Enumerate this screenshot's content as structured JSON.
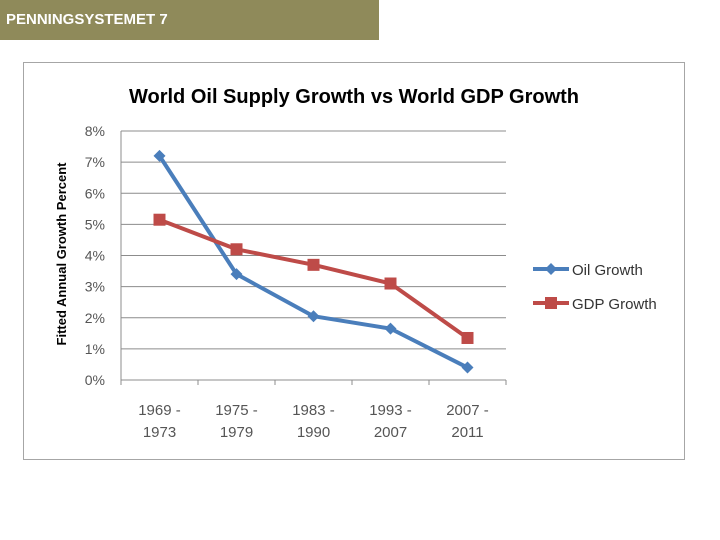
{
  "banner": {
    "title": "PENNINGSYSTEMET 7"
  },
  "chart_data": {
    "type": "line",
    "title": "World Oil Supply Growth vs World GDP Growth",
    "xlabel": "",
    "ylabel": "Fitted Annual Growth Percent",
    "categories": [
      [
        "1969 -",
        "1973"
      ],
      [
        "1975 -",
        "1979"
      ],
      [
        "1983 -",
        "1990"
      ],
      [
        "1993 -",
        "2007"
      ],
      [
        "2007 -",
        "2011"
      ]
    ],
    "ylim": [
      0,
      8
    ],
    "yticks": [
      "0%",
      "1%",
      "2%",
      "3%",
      "4%",
      "5%",
      "6%",
      "7%",
      "8%"
    ],
    "grid": true,
    "legend_position": "right",
    "series": [
      {
        "name": "Oil Growth",
        "values": [
          7.2,
          3.4,
          2.05,
          1.65,
          0.4
        ],
        "color": "#4a7ebb",
        "marker": "diamond"
      },
      {
        "name": "GDP Growth",
        "values": [
          5.15,
          4.2,
          3.7,
          3.1,
          1.35
        ],
        "color": "#be4b48",
        "marker": "square"
      }
    ]
  }
}
